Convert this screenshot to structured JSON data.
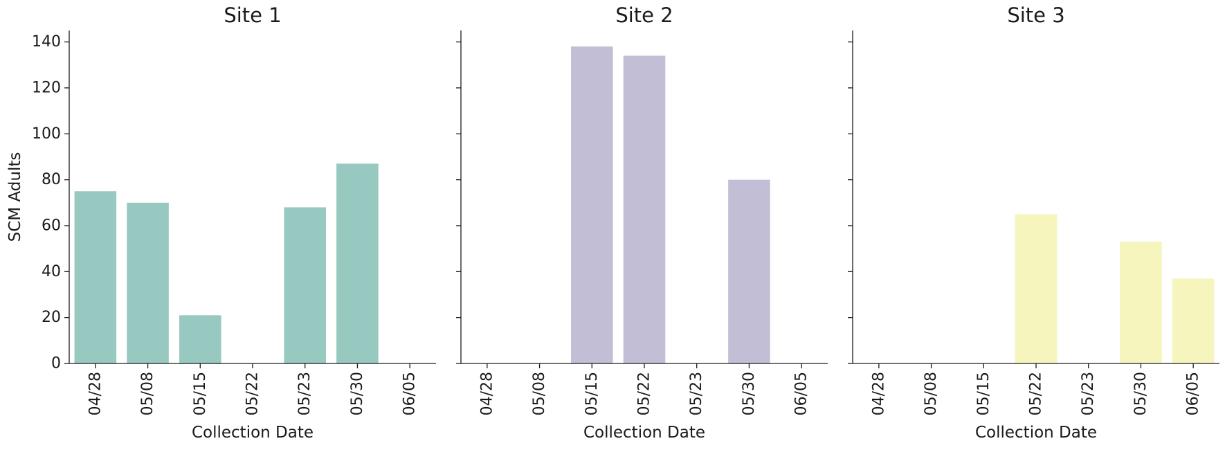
{
  "chart_data": [
    {
      "type": "bar",
      "title": "Site 1",
      "xlabel": "Collection Date",
      "ylabel": "SCM Adults",
      "categories": [
        "04/28",
        "05/08",
        "05/15",
        "05/22",
        "05/23",
        "05/30",
        "06/05"
      ],
      "values": [
        75,
        70,
        21,
        0,
        68,
        87,
        0
      ],
      "color": "#98c9c1",
      "ylim": [
        0,
        145
      ],
      "yticks": [
        0,
        20,
        40,
        60,
        80,
        100,
        120,
        140
      ],
      "show_ytick_labels": true,
      "grid": false
    },
    {
      "type": "bar",
      "title": "Site 2",
      "xlabel": "Collection Date",
      "ylabel": "",
      "categories": [
        "04/28",
        "05/08",
        "05/15",
        "05/22",
        "05/23",
        "05/30",
        "06/05"
      ],
      "values": [
        0,
        0,
        138,
        134,
        0,
        80,
        0
      ],
      "color": "#c2bed6",
      "ylim": [
        0,
        145
      ],
      "yticks": [
        0,
        20,
        40,
        60,
        80,
        100,
        120,
        140
      ],
      "show_ytick_labels": false,
      "grid": false
    },
    {
      "type": "bar",
      "title": "Site 3",
      "xlabel": "Collection Date",
      "ylabel": "",
      "categories": [
        "04/28",
        "05/08",
        "05/15",
        "05/22",
        "05/23",
        "05/30",
        "06/05"
      ],
      "values": [
        0,
        0,
        0,
        65,
        0,
        53,
        37
      ],
      "color": "#f5f5bd",
      "ylim": [
        0,
        145
      ],
      "yticks": [
        0,
        20,
        40,
        60,
        80,
        100,
        120,
        140
      ],
      "show_ytick_labels": false,
      "grid": false
    }
  ]
}
